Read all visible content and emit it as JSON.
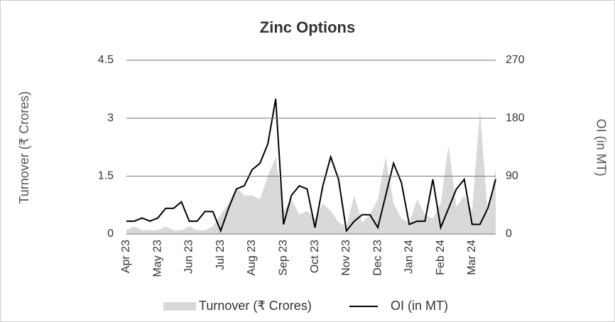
{
  "chart_data": {
    "type": "combo",
    "title": "Zinc Options",
    "categories": [
      "Apr 23",
      null,
      null,
      null,
      "May 23",
      null,
      null,
      null,
      "Jun 23",
      null,
      null,
      null,
      "Jul 23",
      null,
      null,
      null,
      "Aug 23",
      null,
      null,
      null,
      "Sep 23",
      null,
      null,
      null,
      "Oct 23",
      null,
      null,
      null,
      "Nov 23",
      null,
      null,
      null,
      "Dec 23",
      null,
      null,
      null,
      "Jan 24",
      null,
      null,
      null,
      "Feb 24",
      null,
      null,
      null,
      "Mar 24",
      null,
      null,
      null
    ],
    "series": [
      {
        "name": "Turnover (₹ Crores)",
        "type": "area",
        "color": "#d9d9d9",
        "axis": "y",
        "values": [
          0.1,
          0.2,
          0.1,
          0.1,
          0.1,
          0.2,
          0.1,
          0.1,
          0.2,
          0.1,
          0.1,
          0.2,
          0.5,
          0.8,
          1.2,
          1.0,
          1.0,
          0.9,
          1.5,
          2.0,
          0.6,
          0.9,
          0.5,
          0.6,
          0.4,
          0.8,
          0.6,
          0.3,
          0.2,
          1.0,
          0.3,
          0.5,
          0.9,
          2.0,
          0.8,
          0.4,
          0.3,
          0.9,
          0.5,
          0.4,
          0.8,
          2.3,
          0.7,
          1.0,
          0.6,
          3.2,
          0.5,
          1.7
        ]
      },
      {
        "name": "OI (in MT)",
        "type": "line",
        "color": "#000000",
        "axis": "y2",
        "values": [
          20,
          20,
          25,
          20,
          25,
          40,
          40,
          50,
          20,
          20,
          35,
          35,
          5,
          40,
          70,
          75,
          100,
          110,
          140,
          210,
          15,
          60,
          75,
          70,
          10,
          75,
          120,
          85,
          5,
          20,
          30,
          30,
          10,
          60,
          110,
          80,
          15,
          20,
          20,
          85,
          10,
          40,
          70,
          85,
          15,
          15,
          40,
          85
        ]
      }
    ],
    "ylabel": "Turnover (₹ Crores)",
    "y2label": "OI (in MT)",
    "ylim": [
      0,
      4.5
    ],
    "yticks": [
      0,
      1.5,
      3,
      4.5
    ],
    "y2lim": [
      0,
      270
    ],
    "y2ticks": [
      0,
      90,
      180,
      270
    ],
    "grid": true,
    "legend": "bottom"
  }
}
